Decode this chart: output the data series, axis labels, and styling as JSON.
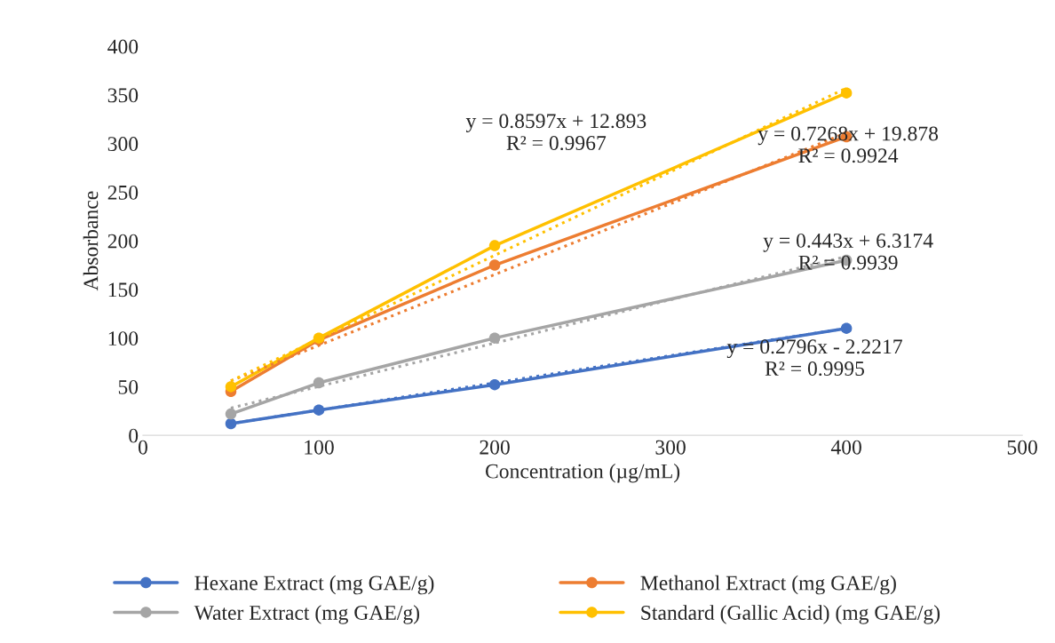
{
  "chart_data": {
    "type": "line",
    "xlabel": "Concentration (µg/mL)",
    "ylabel": "Absorbance",
    "xlim": [
      0,
      500
    ],
    "xticks": [
      0,
      100,
      200,
      300,
      400,
      500
    ],
    "ylim": [
      0,
      400
    ],
    "yticks": [
      0,
      50,
      100,
      150,
      200,
      250,
      300,
      350,
      400
    ],
    "grid": false,
    "legend": "bottom",
    "marker": "circle",
    "line_style": "solid",
    "series": [
      {
        "name": "Hexane Extract (mg GAE/g)",
        "color": "#4472c4",
        "x": [
          50,
          100,
          200,
          400
        ],
        "values": [
          12,
          26,
          52,
          110
        ]
      },
      {
        "name": "Methanol Extract (mg GAE/g)",
        "color": "#ed7d31",
        "x": [
          50,
          100,
          200,
          400
        ],
        "values": [
          45,
          98,
          175,
          307
        ]
      },
      {
        "name": "Water Extract (mg GAE/g)",
        "color": "#a5a5a5",
        "x": [
          50,
          100,
          200,
          400
        ],
        "values": [
          22,
          54,
          100,
          180
        ]
      },
      {
        "name": "Standard (Gallic Acid) (mg GAE/g)",
        "color": "#ffc000",
        "x": [
          50,
          100,
          200,
          400
        ],
        "values": [
          50,
          100,
          195,
          352
        ]
      },
      {
        "type": "line",
        "color": "#4472c4",
        "x": [
          50,
          400
        ],
        "values": [
          12,
          110
        ],
        "line_style": "dotted",
        "marker": "none"
      },
      {
        "type": "line",
        "color": "#ed7d31",
        "x": [
          50,
          400
        ],
        "values": [
          56,
          311
        ],
        "line_style": "dotted",
        "marker": "none"
      },
      {
        "type": "line",
        "color": "#a5a5a5",
        "x": [
          50,
          400
        ],
        "values": [
          28,
          184
        ],
        "line_style": "dotted",
        "marker": "none"
      },
      {
        "type": "line",
        "color": "#ffc000",
        "x": [
          50,
          400
        ],
        "values": [
          56,
          357
        ],
        "line_style": "dotted",
        "marker": "none"
      }
    ],
    "annotations": [
      "y = 0.2796x - 2.2217\nR² = 0.9995",
      "y = 0.7268x + 19.878\nR² = 0.9924",
      "y = 0.443x + 6.3174\nR² = 0.9939",
      "y = 0.8597x + 12.893\nR² = 0.9967"
    ]
  }
}
